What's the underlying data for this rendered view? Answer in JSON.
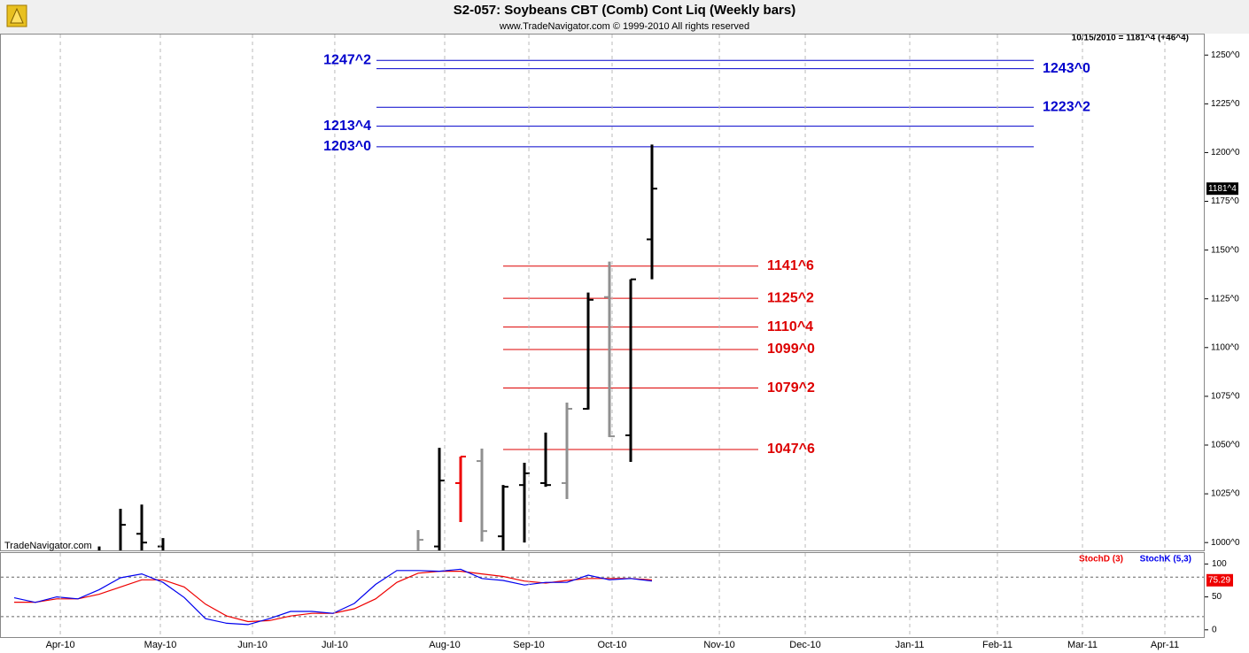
{
  "chart_data": [
    {
      "type": "ohlc",
      "title": "S2-057:  Soybeans CBT (Comb) Cont Liq  (Weekly bars)",
      "subtitle": "www.TradeNavigator.com © 1999-2010 All rights reserved",
      "info": "10/15/2010 = 1181^4 (+46^4)",
      "watermark": "TradeNavigator.com",
      "xlim": [
        -4.667,
        52
      ],
      "ylim": [
        996,
        1261
      ],
      "yticks": [
        {
          "value": 1000,
          "label": "1000^0"
        },
        {
          "value": 1025,
          "label": "1025^0"
        },
        {
          "value": 1050,
          "label": "1050^0"
        },
        {
          "value": 1075,
          "label": "1075^0"
        },
        {
          "value": 1100,
          "label": "1100^0"
        },
        {
          "value": 1125,
          "label": "1125^0"
        },
        {
          "value": 1150,
          "label": "1150^0"
        },
        {
          "value": 1175,
          "label": "1175^0"
        },
        {
          "value": 1200,
          "label": "1200^0"
        },
        {
          "value": 1225,
          "label": "1225^0"
        },
        {
          "value": 1250,
          "label": "1250^0"
        }
      ],
      "x": [
        0,
        1,
        2,
        3,
        15,
        16,
        17,
        18,
        19,
        20,
        21,
        22,
        23,
        24,
        25,
        26
      ],
      "open": [
        995,
        995,
        1004.5,
        998,
        990,
        998,
        1030.5,
        1041.8,
        1003.2,
        1029.5,
        1030.5,
        1030.5,
        1068.6,
        1125.9,
        1055,
        1155.5
      ],
      "high": [
        998,
        1017.3,
        1019.5,
        1002.3,
        1006.4,
        1048.6,
        1044.1,
        1048.2,
        1029.5,
        1040.9,
        1056.4,
        1071.8,
        1128.2,
        1144.1,
        1135,
        1204.1
      ],
      "low": [
        990,
        990,
        990,
        990,
        985,
        995,
        1010.5,
        1000.5,
        994,
        1000,
        1028.6,
        1022.3,
        1068.2,
        1054.1,
        1041.4,
        1135
      ],
      "close": [
        994,
        1009.1,
        1000,
        995,
        1001.4,
        1031.8,
        1044.1,
        1005.9,
        1028.6,
        1035.5,
        1029.5,
        1068.6,
        1124.5,
        1054.5,
        1135,
        1181.5
      ],
      "colors": [
        "#000000",
        "#000000",
        "#000000",
        "#000000",
        "#909090",
        "#000000",
        "#ee0000",
        "#909090",
        "#000000",
        "#000000",
        "#000000",
        "#909090",
        "#000000",
        "#909090",
        "#000000",
        "#000000"
      ],
      "levels": [
        {
          "color": "#0000cc",
          "lines": [
            {
              "value": 1247.25,
              "label": "1247^2",
              "side": "left"
            },
            {
              "value": 1243,
              "label": "1243^0",
              "side": "right"
            },
            {
              "value": 1223.25,
              "label": "1223^2",
              "side": "right"
            },
            {
              "value": 1213.5,
              "label": "1213^4",
              "side": "left"
            },
            {
              "value": 1203,
              "label": "1203^0",
              "side": "left"
            }
          ]
        },
        {
          "color": "#dd0000",
          "lines": [
            {
              "value": 1141.75,
              "label": "1141^6",
              "side": "right"
            },
            {
              "value": 1125.25,
              "label": "1125^2",
              "side": "right"
            },
            {
              "value": 1110.5,
              "label": "1110^4",
              "side": "right"
            },
            {
              "value": 1099,
              "label": "1099^0",
              "side": "right"
            },
            {
              "value": 1079.25,
              "label": "1079^2",
              "side": "right"
            },
            {
              "value": 1047.75,
              "label": "1047^6",
              "side": "right"
            }
          ]
        }
      ],
      "last_price": {
        "value": 1181.5,
        "label": "1181^4"
      }
    },
    {
      "type": "line",
      "xlim": [
        -4.667,
        52
      ],
      "ylim": [
        -11,
        118
      ],
      "yticks": [
        0,
        50,
        100
      ],
      "reference_lines": [
        20,
        80
      ],
      "xticks": [
        {
          "value": -1.83,
          "label": "Apr-10"
        },
        {
          "value": 2.875,
          "label": "May-10"
        },
        {
          "value": 7.21,
          "label": "Jun-10"
        },
        {
          "value": 11.08,
          "label": "Jul-10"
        },
        {
          "value": 16.25,
          "label": "Aug-10"
        },
        {
          "value": 20.21,
          "label": "Sep-10"
        },
        {
          "value": 24.125,
          "label": "Oct-10"
        },
        {
          "value": 29.17,
          "label": "Nov-10"
        },
        {
          "value": 33.21,
          "label": "Dec-10"
        },
        {
          "value": 38.125,
          "label": "Jan-11"
        },
        {
          "value": 42.25,
          "label": "Feb-11"
        },
        {
          "value": 46.25,
          "label": "Mar-11"
        },
        {
          "value": 50.125,
          "label": "Apr-11"
        }
      ],
      "x": [
        -4,
        -3,
        -2,
        -1,
        0,
        1,
        2,
        3,
        4,
        5,
        6,
        7,
        8,
        9,
        10,
        11,
        12,
        13,
        14,
        15,
        16,
        17,
        18,
        19,
        20,
        21,
        22,
        23,
        24,
        25,
        26
      ],
      "series": [
        {
          "name": "StochD (3)",
          "color": "#ee0000",
          "values": [
            42,
            42,
            47,
            47,
            54,
            65,
            76,
            76,
            65,
            39,
            21,
            12.5,
            14,
            21,
            25,
            25,
            32,
            47,
            72,
            86,
            89,
            89,
            85,
            81,
            74,
            71,
            75,
            78,
            78,
            78,
            76
          ]
        },
        {
          "name": "StochK (5,3)",
          "color": "#0000ee",
          "values": [
            48.6,
            41.7,
            50,
            47,
            61,
            79,
            85,
            72,
            49,
            17,
            10,
            8,
            17,
            28,
            28,
            25,
            40,
            69,
            90,
            90,
            89,
            92,
            78,
            75,
            68,
            72,
            72,
            83,
            76,
            78,
            74
          ]
        }
      ],
      "last_value": 75.29
    }
  ]
}
